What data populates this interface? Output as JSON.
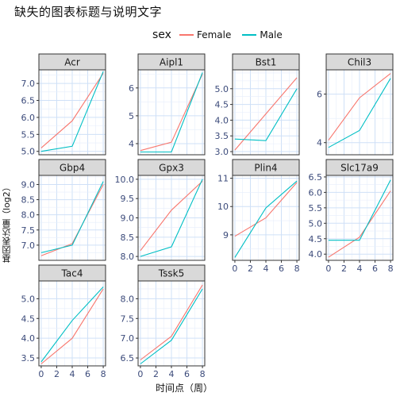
{
  "title": "缺失的图表标题与说明文字",
  "x_axis_title": "时间点（周）",
  "y_axis_title": "基因表达量（log2）",
  "legend": {
    "title": "sex",
    "items": [
      {
        "label": "Female",
        "color": "#f8766d"
      },
      {
        "label": "Male",
        "color": "#00bfc4"
      }
    ]
  },
  "chart_data": {
    "type": "line",
    "facet_by": "gene",
    "x": [
      0,
      4,
      8
    ],
    "x_ticks": [
      "0",
      "2",
      "4",
      "6",
      "8"
    ],
    "panels": [
      {
        "name": "Acr",
        "ylim": [
          4.9,
          7.4
        ],
        "yticks": [
          "5.0",
          "5.5",
          "6.0",
          "6.5",
          "7.0"
        ],
        "series": [
          {
            "name": "Female",
            "values": [
              5.1,
              5.9,
              7.3
            ]
          },
          {
            "name": "Male",
            "values": [
              5.0,
              5.15,
              7.35
            ]
          }
        ]
      },
      {
        "name": "Aipl1",
        "ylim": [
          3.6,
          6.65
        ],
        "yticks": [
          "4",
          "5",
          "6"
        ],
        "series": [
          {
            "name": "Female",
            "values": [
              3.75,
              4.05,
              6.5
            ]
          },
          {
            "name": "Male",
            "values": [
              3.7,
              3.7,
              6.55
            ]
          }
        ]
      },
      {
        "name": "Bst1",
        "ylim": [
          2.9,
          5.6
        ],
        "yticks": [
          "3.0",
          "3.5",
          "4.0",
          "4.5",
          "5.0"
        ],
        "series": [
          {
            "name": "Female",
            "values": [
              3.05,
              4.2,
              5.35
            ]
          },
          {
            "name": "Male",
            "values": [
              3.4,
              3.35,
              5.0
            ]
          }
        ]
      },
      {
        "name": "Chil3",
        "ylim": [
          3.5,
          7.0
        ],
        "yticks": [
          "4",
          "6"
        ],
        "series": [
          {
            "name": "Female",
            "values": [
              4.1,
              5.85,
              6.85
            ]
          },
          {
            "name": "Male",
            "values": [
              3.8,
              4.5,
              6.65
            ]
          }
        ]
      },
      {
        "name": "Gbp4",
        "ylim": [
          6.5,
          9.3
        ],
        "yticks": [
          "7.0",
          "7.5",
          "8.0",
          "8.5",
          "9.0"
        ],
        "series": [
          {
            "name": "Female",
            "values": [
              6.65,
              7.05,
              9.0
            ]
          },
          {
            "name": "Male",
            "values": [
              6.75,
              7.0,
              9.1
            ]
          }
        ]
      },
      {
        "name": "Gpx3",
        "ylim": [
          7.9,
          10.1
        ],
        "yticks": [
          "8.0",
          "8.5",
          "9.0",
          "9.5",
          "10.0"
        ],
        "series": [
          {
            "name": "Female",
            "values": [
              8.15,
              9.2,
              9.95
            ]
          },
          {
            "name": "Male",
            "values": [
              8.0,
              8.25,
              10.0
            ]
          }
        ]
      },
      {
        "name": "Plin4",
        "ylim": [
          8.1,
          11.1
        ],
        "yticks": [
          "9",
          "10",
          "11"
        ],
        "series": [
          {
            "name": "Female",
            "values": [
              8.95,
              9.6,
              10.85
            ]
          },
          {
            "name": "Male",
            "values": [
              8.2,
              9.95,
              10.9
            ]
          }
        ]
      },
      {
        "name": "Slc17a9",
        "ylim": [
          3.8,
          6.55
        ],
        "yticks": [
          "4.0",
          "4.5",
          "5.0",
          "5.5",
          "6.0",
          "6.5"
        ],
        "series": [
          {
            "name": "Female",
            "values": [
              3.9,
              4.55,
              6.05
            ]
          },
          {
            "name": "Male",
            "values": [
              4.45,
              4.45,
              6.4
            ]
          }
        ]
      },
      {
        "name": "Tac4",
        "ylim": [
          3.3,
          5.45
        ],
        "yticks": [
          "3.5",
          "4.0",
          "4.5",
          "5.0"
        ],
        "series": [
          {
            "name": "Female",
            "values": [
              3.35,
              4.0,
              5.25
            ]
          },
          {
            "name": "Male",
            "values": [
              3.4,
              4.45,
              5.3
            ]
          }
        ]
      },
      {
        "name": "Tssk5",
        "ylim": [
          6.3,
          8.45
        ],
        "yticks": [
          "6.5",
          "7.0",
          "7.5",
          "8.0"
        ],
        "series": [
          {
            "name": "Female",
            "values": [
              6.45,
              7.05,
              8.35
            ]
          },
          {
            "name": "Male",
            "values": [
              6.35,
              6.95,
              8.25
            ]
          }
        ]
      }
    ],
    "grid": true,
    "legend_position": "top"
  }
}
